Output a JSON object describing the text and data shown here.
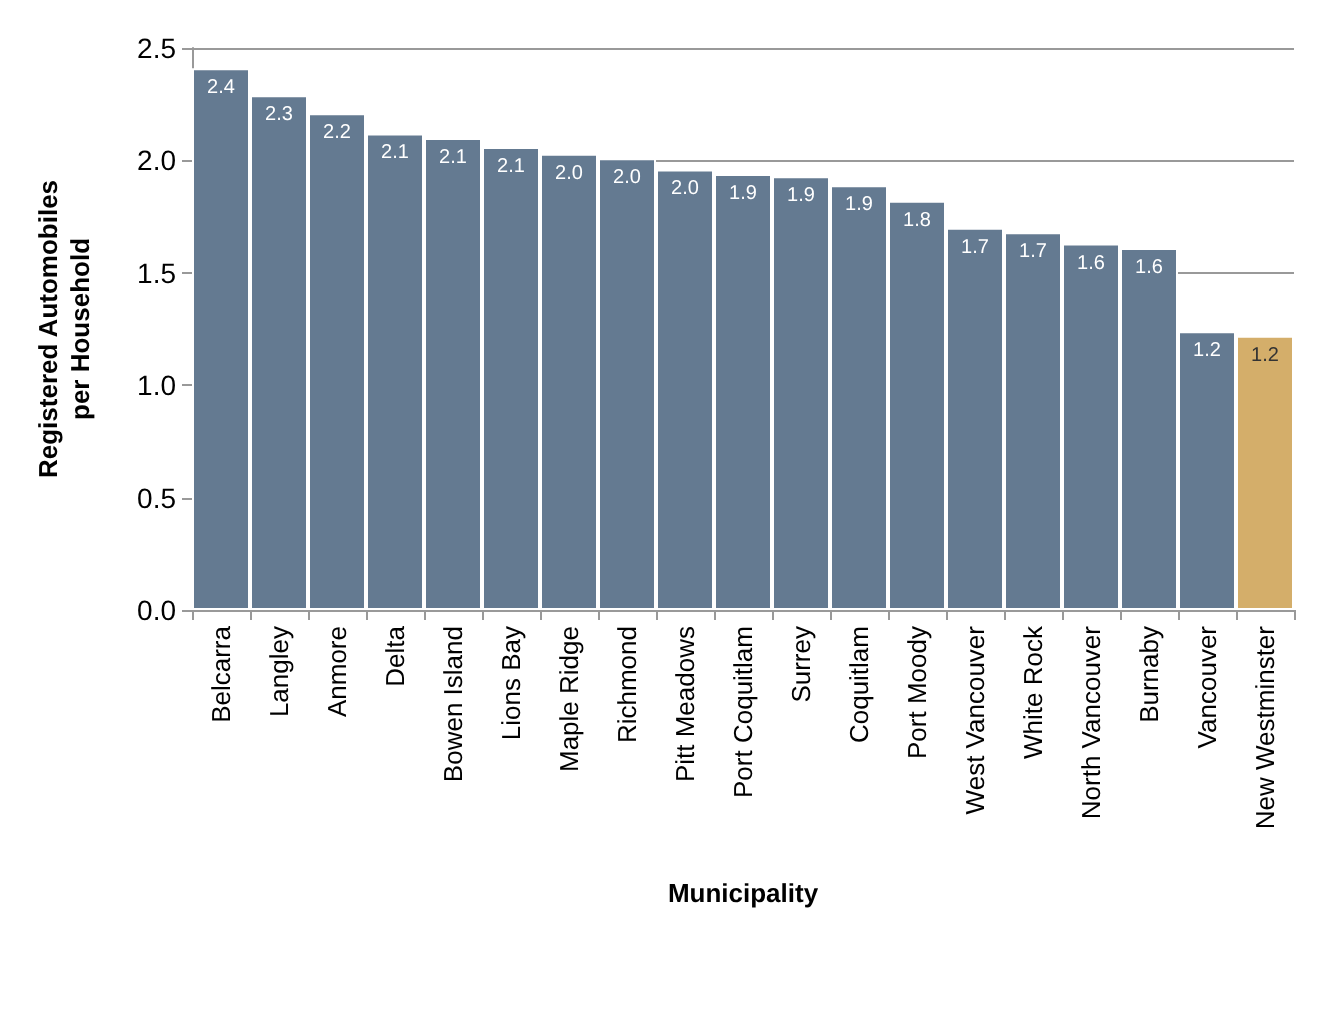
{
  "chart_data": {
    "type": "bar",
    "xlabel": "Municipality",
    "ylabel": "Registered Automobiles\nper Household",
    "categories": [
      "Belcarra",
      "Langley",
      "Anmore",
      "Delta",
      "Bowen Island",
      "Lions Bay",
      "Maple Ridge",
      "Richmond",
      "Pitt Meadows",
      "Port Coquitlam",
      "Surrey",
      "Coquitlam",
      "Port Moody",
      "West Vancouver",
      "White Rock",
      "North Vancouver",
      "Burnaby",
      "Vancouver",
      "New Westminster"
    ],
    "values": [
      2.41,
      2.29,
      2.21,
      2.12,
      2.1,
      2.06,
      2.03,
      2.01,
      1.96,
      1.94,
      1.93,
      1.89,
      1.82,
      1.7,
      1.68,
      1.63,
      1.61,
      1.24,
      1.22
    ],
    "value_labels": [
      "2.4",
      "2.3",
      "2.2",
      "2.1",
      "2.1",
      "2.1",
      "2.0",
      "2.0",
      "2.0",
      "1.9",
      "1.9",
      "1.9",
      "1.8",
      "1.7",
      "1.7",
      "1.6",
      "1.6",
      "1.2",
      "1.2"
    ],
    "colors": [
      "#647a91",
      "#647a91",
      "#647a91",
      "#647a91",
      "#647a91",
      "#647a91",
      "#647a91",
      "#647a91",
      "#647a91",
      "#647a91",
      "#647a91",
      "#647a91",
      "#647a91",
      "#647a91",
      "#647a91",
      "#647a91",
      "#647a91",
      "#647a91",
      "#d4ae6a"
    ],
    "ylim": [
      0,
      2.5
    ],
    "yticks": [
      {
        "value": 0,
        "label": "0.0"
      },
      0.5,
      {
        "value": 1,
        "label": "1.0"
      },
      1.5,
      {
        "value": 2,
        "label": "2.0"
      },
      2.5
    ],
    "grid": "y"
  }
}
